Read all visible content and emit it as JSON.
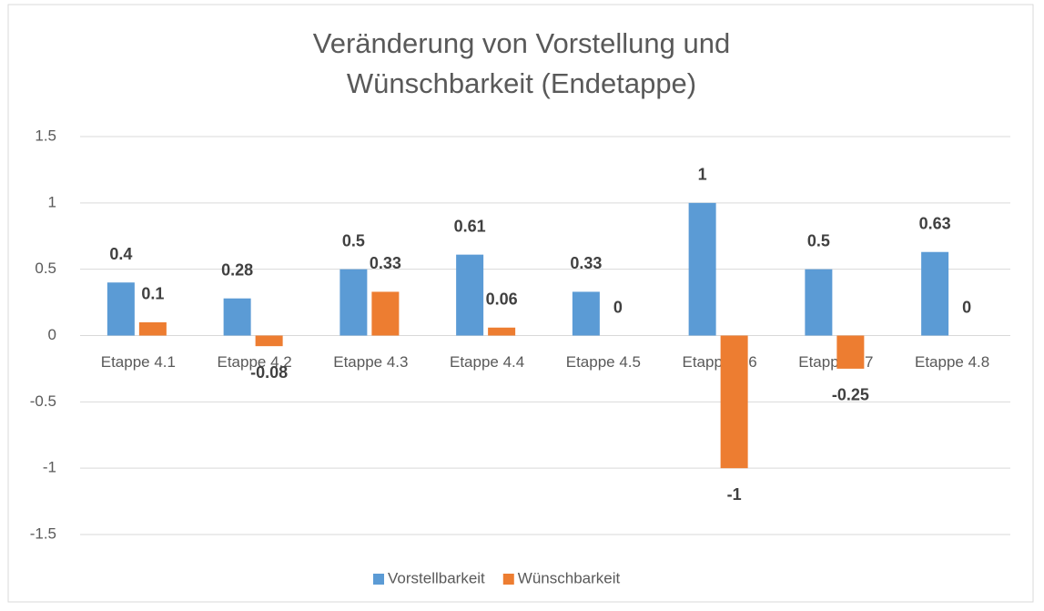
{
  "chart_data": {
    "type": "bar",
    "title": "Veränderung von Vorstellung und Wünschbarkeit (Endetappe)",
    "categories": [
      "Etappe 4.1",
      "Etappe 4.2",
      "Etappe 4.3",
      "Etappe 4.4",
      "Etappe 4.5",
      "Etappe 4.6",
      "Etappe 4.7",
      "Etappe 4.8"
    ],
    "series": [
      {
        "name": "Vorstellbarkeit",
        "color": "#5b9bd5",
        "values": [
          0.4,
          0.28,
          0.5,
          0.61,
          0.33,
          1,
          0.5,
          0.63
        ]
      },
      {
        "name": "Wünschbarkeit",
        "color": "#ed7d31",
        "values": [
          0.1,
          -0.08,
          0.33,
          0.06,
          0,
          -1,
          -0.25,
          0
        ]
      }
    ],
    "ylim": [
      -1.5,
      1.5
    ],
    "yticks": [
      -1.5,
      -1,
      -0.5,
      0,
      0.5,
      1,
      1.5
    ],
    "grid": true,
    "legend": "bottom"
  }
}
